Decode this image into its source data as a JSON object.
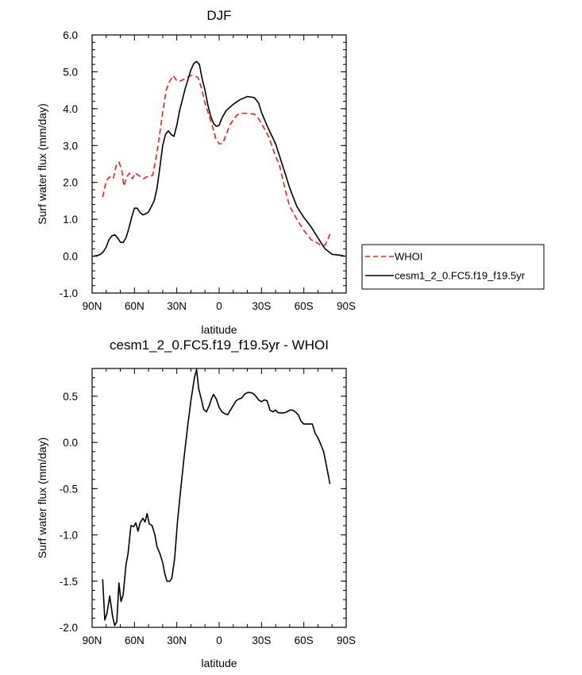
{
  "chart_data": [
    {
      "type": "line",
      "title": "DJF",
      "xlabel": "latitude",
      "ylabel": "Surf water flux (mm/day)",
      "xlim": [
        90,
        -90
      ],
      "ylim": [
        -1.0,
        6.0
      ],
      "x_ticks": [
        {
          "value": 90,
          "label": "90N"
        },
        {
          "value": 60,
          "label": "60N"
        },
        {
          "value": 30,
          "label": "30N"
        },
        {
          "value": 0,
          "label": "0"
        },
        {
          "value": -30,
          "label": "30S"
        },
        {
          "value": -60,
          "label": "60S"
        },
        {
          "value": -90,
          "label": "90S"
        }
      ],
      "y_ticks": [
        {
          "value": -1.0,
          "label": "-1.0"
        },
        {
          "value": 0.0,
          "label": "0.0"
        },
        {
          "value": 1.0,
          "label": "1.0"
        },
        {
          "value": 2.0,
          "label": "2.0"
        },
        {
          "value": 3.0,
          "label": "3.0"
        },
        {
          "value": 4.0,
          "label": "4.0"
        },
        {
          "value": 5.0,
          "label": "5.0"
        },
        {
          "value": 6.0,
          "label": "6.0"
        }
      ],
      "grid": false,
      "legend_position": "right",
      "series": [
        {
          "name": "WHOI",
          "color": "#e8231f",
          "dash": "dashed",
          "points": [
            [
              82.5,
              1.6
            ],
            [
              80,
              2.05
            ],
            [
              77.5,
              2.15
            ],
            [
              75,
              2.1
            ],
            [
              73,
              2.45
            ],
            [
              71,
              2.55
            ],
            [
              69,
              2.35
            ],
            [
              67.5,
              1.9
            ],
            [
              65.5,
              2.15
            ],
            [
              63.5,
              2.25
            ],
            [
              61.5,
              2.1
            ],
            [
              59.5,
              2.25
            ],
            [
              57.5,
              2.2
            ],
            [
              55.5,
              2.15
            ],
            [
              53.5,
              2.1
            ],
            [
              51.5,
              2.15
            ],
            [
              49.5,
              2.15
            ],
            [
              47,
              2.2
            ],
            [
              45,
              2.6
            ],
            [
              42.5,
              3.2
            ],
            [
              40,
              3.9
            ],
            [
              37.5,
              4.5
            ],
            [
              35,
              4.75
            ],
            [
              32.5,
              4.9
            ],
            [
              30,
              4.75
            ],
            [
              27.5,
              4.75
            ],
            [
              25,
              4.8
            ],
            [
              22.5,
              4.85
            ],
            [
              20,
              4.9
            ],
            [
              17.5,
              4.88
            ],
            [
              15,
              4.85
            ],
            [
              12.5,
              4.55
            ],
            [
              10,
              4.15
            ],
            [
              7.5,
              3.85
            ],
            [
              5,
              3.55
            ],
            [
              2.5,
              3.2
            ],
            [
              0,
              3.05
            ],
            [
              -2.5,
              3.05
            ],
            [
              -5,
              3.3
            ],
            [
              -7.5,
              3.55
            ],
            [
              -10,
              3.7
            ],
            [
              -12.5,
              3.82
            ],
            [
              -15,
              3.88
            ],
            [
              -20,
              3.87
            ],
            [
              -25,
              3.85
            ],
            [
              -27.5,
              3.75
            ],
            [
              -30,
              3.6
            ],
            [
              -35,
              3.25
            ],
            [
              -40,
              2.7
            ],
            [
              -42.5,
              2.5
            ],
            [
              -45,
              2.1
            ],
            [
              -47.5,
              1.7
            ],
            [
              -50,
              1.35
            ],
            [
              -55,
              1.0
            ],
            [
              -60,
              0.7
            ],
            [
              -65,
              0.45
            ],
            [
              -70,
              0.35
            ],
            [
              -72.5,
              0.28
            ],
            [
              -75,
              0.3
            ],
            [
              -77,
              0.45
            ],
            [
              -78.5,
              0.6
            ]
          ]
        },
        {
          "name": "cesm1_2_0.FC5.f19_f19.5yr",
          "color": "#000000",
          "dash": "solid",
          "points": [
            [
              89,
              0.0
            ],
            [
              86,
              0.02
            ],
            [
              84,
              0.05
            ],
            [
              82,
              0.12
            ],
            [
              80,
              0.25
            ],
            [
              78,
              0.45
            ],
            [
              76,
              0.55
            ],
            [
              74,
              0.58
            ],
            [
              72,
              0.5
            ],
            [
              70,
              0.38
            ],
            [
              68,
              0.37
            ],
            [
              66,
              0.5
            ],
            [
              64,
              0.75
            ],
            [
              62,
              1.05
            ],
            [
              60,
              1.3
            ],
            [
              58,
              1.3
            ],
            [
              56,
              1.18
            ],
            [
              54,
              1.12
            ],
            [
              52,
              1.15
            ],
            [
              50,
              1.2
            ],
            [
              48,
              1.35
            ],
            [
              46,
              1.5
            ],
            [
              44,
              1.85
            ],
            [
              42,
              2.4
            ],
            [
              40,
              3.0
            ],
            [
              38,
              3.3
            ],
            [
              36,
              3.4
            ],
            [
              34,
              3.3
            ],
            [
              32,
              3.25
            ],
            [
              30,
              3.55
            ],
            [
              28,
              3.95
            ],
            [
              26,
              4.25
            ],
            [
              24,
              4.55
            ],
            [
              22,
              4.8
            ],
            [
              20,
              5.05
            ],
            [
              18,
              5.22
            ],
            [
              16,
              5.28
            ],
            [
              14,
              5.2
            ],
            [
              12,
              4.8
            ],
            [
              10,
              4.5
            ],
            [
              8,
              4.1
            ],
            [
              6,
              3.8
            ],
            [
              4,
              3.6
            ],
            [
              2,
              3.52
            ],
            [
              0,
              3.55
            ],
            [
              -2,
              3.75
            ],
            [
              -5,
              3.95
            ],
            [
              -8,
              4.05
            ],
            [
              -10,
              4.12
            ],
            [
              -15,
              4.25
            ],
            [
              -20,
              4.33
            ],
            [
              -25,
              4.3
            ],
            [
              -28,
              4.15
            ],
            [
              -30,
              3.9
            ],
            [
              -35,
              3.45
            ],
            [
              -40,
              3.05
            ],
            [
              -45,
              2.45
            ],
            [
              -50,
              1.85
            ],
            [
              -55,
              1.35
            ],
            [
              -60,
              1.05
            ],
            [
              -65,
              0.8
            ],
            [
              -70,
              0.5
            ],
            [
              -75,
              0.2
            ],
            [
              -80,
              0.05
            ],
            [
              -85,
              0.03
            ],
            [
              -89,
              0.0
            ]
          ]
        }
      ]
    },
    {
      "type": "line",
      "title": "cesm1_2_0.FC5.f19_f19.5yr - WHOI",
      "xlabel": "latitude",
      "ylabel": "Surf water flux (mm/day)",
      "xlim": [
        90,
        -90
      ],
      "ylim": [
        -2.0,
        0.8
      ],
      "x_ticks": [
        {
          "value": 90,
          "label": "90N"
        },
        {
          "value": 60,
          "label": "60N"
        },
        {
          "value": 30,
          "label": "30N"
        },
        {
          "value": 0,
          "label": "0"
        },
        {
          "value": -30,
          "label": "30S"
        },
        {
          "value": -60,
          "label": "60S"
        },
        {
          "value": -90,
          "label": "90S"
        }
      ],
      "y_ticks": [
        {
          "value": -2.0,
          "label": "-2.0"
        },
        {
          "value": -1.5,
          "label": "-1.5"
        },
        {
          "value": -1.0,
          "label": "-1.0"
        },
        {
          "value": -0.5,
          "label": "-0.5"
        },
        {
          "value": 0.0,
          "label": "0.0"
        },
        {
          "value": 0.5,
          "label": "0.5"
        }
      ],
      "grid": false,
      "series": [
        {
          "color": "#000000",
          "dash": "solid",
          "points": [
            [
              82.5,
              -1.48
            ],
            [
              81,
              -1.92
            ],
            [
              79.5,
              -1.85
            ],
            [
              77.5,
              -1.66
            ],
            [
              75.5,
              -1.88
            ],
            [
              74,
              -1.98
            ],
            [
              72.5,
              -1.94
            ],
            [
              71,
              -1.52
            ],
            [
              69.5,
              -1.72
            ],
            [
              68,
              -1.65
            ],
            [
              66,
              -1.32
            ],
            [
              64.5,
              -1.2
            ],
            [
              62.5,
              -0.9
            ],
            [
              60.5,
              -0.91
            ],
            [
              59,
              -0.87
            ],
            [
              57.5,
              -0.96
            ],
            [
              56,
              -0.87
            ],
            [
              54,
              -0.82
            ],
            [
              52.5,
              -0.86
            ],
            [
              51,
              -0.77
            ],
            [
              49.5,
              -0.88
            ],
            [
              47.5,
              -0.9
            ],
            [
              45.5,
              -1.0
            ],
            [
              44,
              -1.13
            ],
            [
              42,
              -1.2
            ],
            [
              40,
              -1.3
            ],
            [
              38.5,
              -1.42
            ],
            [
              37,
              -1.5
            ],
            [
              35,
              -1.5
            ],
            [
              33.5,
              -1.47
            ],
            [
              31.5,
              -1.25
            ],
            [
              29.5,
              -0.85
            ],
            [
              27.5,
              -0.55
            ],
            [
              25,
              -0.18
            ],
            [
              22.5,
              0.15
            ],
            [
              20,
              0.45
            ],
            [
              17.5,
              0.7
            ],
            [
              16,
              0.79
            ],
            [
              14.5,
              0.58
            ],
            [
              12.5,
              0.46
            ],
            [
              11,
              0.36
            ],
            [
              9,
              0.33
            ],
            [
              7,
              0.4
            ],
            [
              5.5,
              0.47
            ],
            [
              4,
              0.52
            ],
            [
              2,
              0.47
            ],
            [
              0,
              0.38
            ],
            [
              -2,
              0.33
            ],
            [
              -4,
              0.31
            ],
            [
              -6,
              0.3
            ],
            [
              -8,
              0.35
            ],
            [
              -10,
              0.4
            ],
            [
              -12,
              0.45
            ],
            [
              -14,
              0.47
            ],
            [
              -16,
              0.48
            ],
            [
              -18,
              0.52
            ],
            [
              -20,
              0.54
            ],
            [
              -22,
              0.54
            ],
            [
              -24,
              0.53
            ],
            [
              -26,
              0.5
            ],
            [
              -28,
              0.46
            ],
            [
              -30,
              0.44
            ],
            [
              -32,
              0.46
            ],
            [
              -34,
              0.45
            ],
            [
              -36,
              0.35
            ],
            [
              -38,
              0.33
            ],
            [
              -40,
              0.35
            ],
            [
              -42,
              0.32
            ],
            [
              -44,
              0.32
            ],
            [
              -46,
              0.32
            ],
            [
              -48,
              0.33
            ],
            [
              -50,
              0.35
            ],
            [
              -52,
              0.35
            ],
            [
              -54,
              0.33
            ],
            [
              -56,
              0.3
            ],
            [
              -58,
              0.23
            ],
            [
              -60,
              0.2
            ],
            [
              -62,
              0.2
            ],
            [
              -64,
              0.2
            ],
            [
              -66,
              0.2
            ],
            [
              -68,
              0.1
            ],
            [
              -70,
              0.05
            ],
            [
              -72,
              -0.02
            ],
            [
              -74,
              -0.1
            ],
            [
              -76,
              -0.25
            ],
            [
              -78.5,
              -0.45
            ]
          ]
        }
      ]
    }
  ]
}
